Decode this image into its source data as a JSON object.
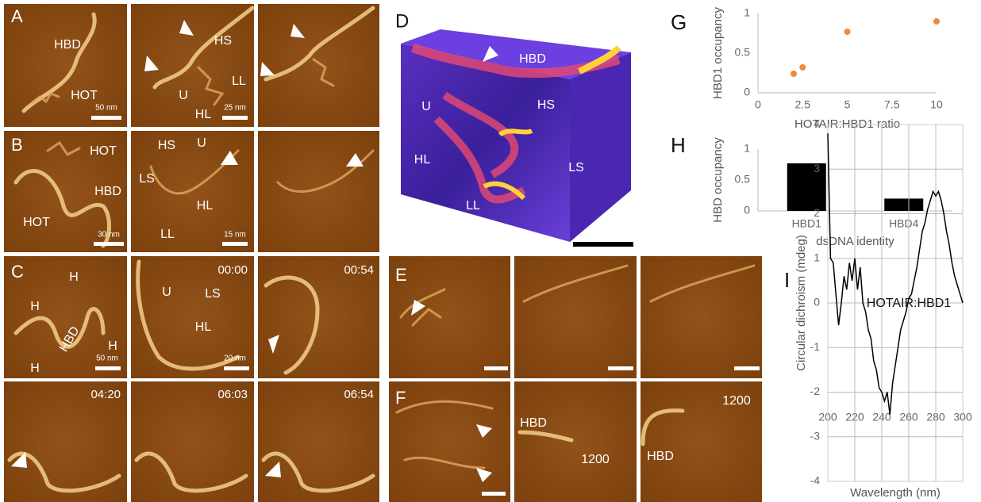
{
  "figure": {
    "A": {
      "label": "A",
      "image1": [
        "HBD",
        "HOT",
        "50 nm"
      ],
      "image2": [
        "HS",
        "U",
        "LL",
        "HL",
        "25 nm"
      ]
    },
    "B": {
      "label": "B",
      "image1": [
        "HOT",
        "HBD",
        "HOT",
        "30 nm"
      ],
      "image2": [
        "HS",
        "U",
        "LS",
        "HL",
        "LL",
        "15 nm"
      ]
    },
    "C": {
      "label": "C",
      "image1": [
        "H",
        "H",
        "HBD",
        "H",
        "H",
        "50 nm"
      ],
      "image2": [
        "00:00",
        "U",
        "LS",
        "HL",
        "20 nm"
      ],
      "image3": [
        "00:54"
      ]
    },
    "row4": [
      "04:20",
      "06:03",
      "06:54"
    ],
    "D": {
      "label": "D",
      "annotations": [
        "HBD",
        "U",
        "HS",
        "HL",
        "LS",
        "LL"
      ]
    },
    "E": {
      "label": "E"
    },
    "F": {
      "label": "F",
      "image2": [
        "HBD",
        "1200"
      ],
      "image3": [
        "1200",
        "HBD"
      ]
    }
  },
  "chart_data": [
    {
      "type": "scatter",
      "label": "G",
      "x_label": "HOTAIR:HBD1 ratio",
      "y_label": "HBD1 occupancy",
      "x": [
        2,
        2.5,
        5,
        10
      ],
      "values": [
        0.24,
        0.32,
        0.77,
        0.9
      ],
      "color": "#f08a3c",
      "xlim": [
        0,
        10
      ],
      "xticks": [
        0,
        2.5,
        5,
        7.5,
        10
      ],
      "ylim": [
        0,
        1
      ],
      "yticks": [
        0,
        0.5,
        1
      ]
    },
    {
      "type": "bar",
      "label": "H",
      "x_label": "dsDNA identity",
      "y_label": "HBD occupancy",
      "categories": [
        "HBD1",
        "HBD4"
      ],
      "values": [
        0.77,
        0.2
      ],
      "color": "#000000",
      "ylim": [
        0,
        1
      ],
      "yticks": [
        0,
        0.5,
        1
      ]
    },
    {
      "type": "line",
      "label": "I",
      "annotation": "HOTAIR:HBD1",
      "x_label": "Wavelength (nm)",
      "y_label": "Circular dichroism (mdeg)",
      "x": [
        200,
        202,
        204,
        206,
        208,
        210,
        212,
        214,
        216,
        218,
        220,
        222,
        224,
        226,
        228,
        230,
        232,
        234,
        236,
        238,
        240,
        242,
        244,
        246,
        248,
        250,
        252,
        254,
        256,
        258,
        260,
        262,
        264,
        266,
        268,
        270,
        272,
        274,
        276,
        278,
        280,
        282,
        284,
        286,
        288,
        290,
        292,
        294,
        296,
        298,
        300
      ],
      "values": [
        3.8,
        1.0,
        0.9,
        0.2,
        -0.5,
        0.0,
        0.6,
        0.3,
        0.9,
        0.5,
        1.0,
        0.3,
        0.8,
        0.0,
        -0.2,
        -0.6,
        -0.8,
        -1.3,
        -1.5,
        -1.9,
        -2.0,
        -2.2,
        -2.0,
        -2.5,
        -1.8,
        -1.4,
        -1.0,
        -0.6,
        -0.4,
        -0.2,
        0.1,
        0.2,
        0.5,
        0.8,
        1.2,
        1.6,
        1.8,
        2.1,
        2.3,
        2.5,
        2.4,
        2.5,
        2.3,
        2.0,
        1.6,
        1.3,
        0.9,
        0.6,
        0.4,
        0.2,
        0.0
      ],
      "color": "#000000",
      "grid": true,
      "xlim": [
        200,
        300
      ],
      "xticks": [
        200,
        220,
        240,
        260,
        280,
        300
      ],
      "ylim": [
        -4,
        4
      ],
      "yticks": [
        -4,
        -3,
        -2,
        -1,
        0,
        1,
        2,
        3,
        4
      ]
    }
  ]
}
